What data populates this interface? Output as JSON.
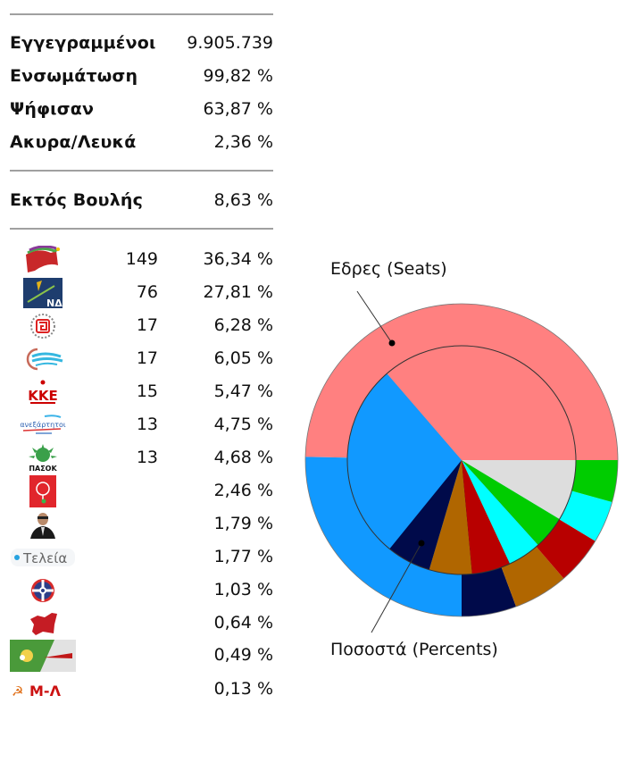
{
  "summary": {
    "rows": [
      {
        "label": "Εγγεγραμμένοι",
        "value": "9.905.739"
      },
      {
        "label": "Ενσωμάτωση",
        "value": "99,82 %"
      },
      {
        "label": "Ψήφισαν",
        "value": "63,87 %"
      },
      {
        "label": "Ακυρα/Λευκά",
        "value": "2,36 %"
      }
    ],
    "outside_parliament": {
      "label": "Εκτός Βουλής",
      "value": "8,63 %"
    }
  },
  "parties": [
    {
      "icon": "syriza-logo-icon",
      "seats": "149",
      "percent": "36,34 %",
      "color": "#FF8080"
    },
    {
      "icon": "nd-logo-icon",
      "seats": "76",
      "percent": "27,81 %",
      "color": "#1199FF"
    },
    {
      "icon": "golden-dawn-logo-icon",
      "seats": "17",
      "percent": "6,28 %",
      "color": "#000A4A"
    },
    {
      "icon": "potami-logo-icon",
      "seats": "17",
      "percent": "6,05 %",
      "color": "#B06600"
    },
    {
      "icon": "kke-logo-icon",
      "seats": "15",
      "percent": "5,47 %",
      "color": "#B80000"
    },
    {
      "icon": "anel-logo-icon",
      "seats": "13",
      "percent": "4,75 %",
      "color": "#00FFFF"
    },
    {
      "icon": "pasok-logo-icon",
      "seats": "13",
      "percent": "4,68 %",
      "color": "#00CC00"
    },
    {
      "icon": "kidiso-logo-icon",
      "seats": "",
      "percent": "2,46 %"
    },
    {
      "icon": "portrait-logo-icon",
      "seats": "",
      "percent": "1,79 %"
    },
    {
      "icon": "teleia-logo-icon",
      "seats": "",
      "percent": "1,77 %"
    },
    {
      "icon": "compass-logo-icon",
      "seats": "",
      "percent": "1,03 %"
    },
    {
      "icon": "red-map-logo-icon",
      "seats": "",
      "percent": "0,64 %"
    },
    {
      "icon": "green-flag-logo-icon",
      "seats": "",
      "percent": "0,49 %"
    },
    {
      "icon": "ml-kke-logo-icon",
      "seats": "",
      "percent": "0,13 %"
    }
  ],
  "logo_text": {
    "nd": "ΝΔ",
    "kke": "ΚΚΕ",
    "pasok": "ΠΑΣΟΚ",
    "teleia": "Τελεία",
    "ml": "Μ-Λ"
  },
  "chart_data": {
    "type": "pie",
    "subtype": "nested-donut",
    "title": "",
    "labels": {
      "outer": "Εδρες (Seats)",
      "inner": "Ποσοστά (Percents)"
    },
    "categories": [
      "ΣΥΡΙΖΑ",
      "ΝΔ",
      "Χρυσή Αυγή",
      "Ποτάμι",
      "ΚΚΕ",
      "ΑΝΕΛ",
      "ΠΑΣΟΚ",
      "Εκτός Βουλής"
    ],
    "colors": [
      "#FF8080",
      "#1199FF",
      "#000A4A",
      "#B06600",
      "#B80000",
      "#00FFFF",
      "#00CC00",
      "#DDDDDD"
    ],
    "series": [
      {
        "name": "Εδρες (Seats)",
        "ring": "outer",
        "values": [
          149,
          76,
          17,
          17,
          15,
          13,
          13,
          0
        ]
      },
      {
        "name": "Ποσοστά (Percents)",
        "ring": "inner",
        "values": [
          36.34,
          27.81,
          6.28,
          6.05,
          5.47,
          4.75,
          4.68,
          8.63
        ]
      }
    ],
    "start_angle_deg": 0,
    "direction": "counterclockwise",
    "legend": "none"
  }
}
